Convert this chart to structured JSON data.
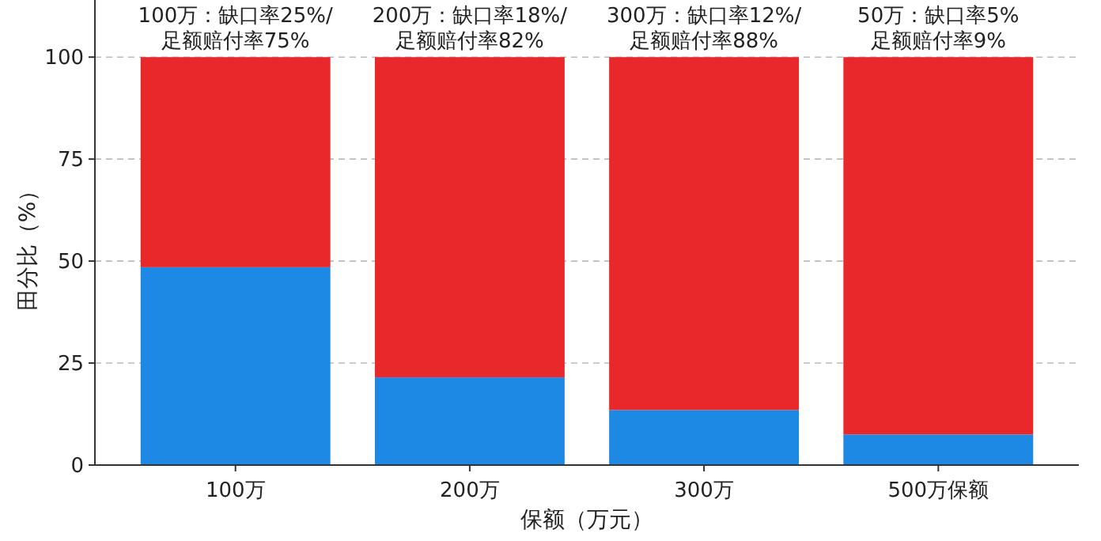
{
  "chart_data": {
    "type": "bar",
    "stacked": true,
    "xlabel": "保额（万元）",
    "ylabel": "田分比（%）",
    "categories": [
      "100万",
      "200万",
      "300万",
      "500万保额"
    ],
    "series": [
      {
        "color": "#1e88e5",
        "values": [
          48.5,
          21.5,
          13.5,
          7.5
        ]
      },
      {
        "color": "#e8282b",
        "values": [
          51.5,
          78.5,
          86.5,
          92.5
        ]
      }
    ],
    "ylim": [
      0,
      114
    ],
    "yticks": [
      0,
      25,
      50,
      75,
      100
    ],
    "grid": "y",
    "annotations": [
      {
        "text": "100万：缺口率25%/\n足额赔付率75%",
        "x": "100万",
        "y": 100
      },
      {
        "text": "200万：缺口率18%/\n足额赔付率82%",
        "x": "200万",
        "y": 100
      },
      {
        "text": "300万：缺口率12%/\n足额赔付率88%",
        "x": "300万",
        "y": 100
      },
      {
        "text": "50万：缺口率5%\n足额赔付率9%",
        "x": "500万保额",
        "y": 100
      }
    ]
  }
}
